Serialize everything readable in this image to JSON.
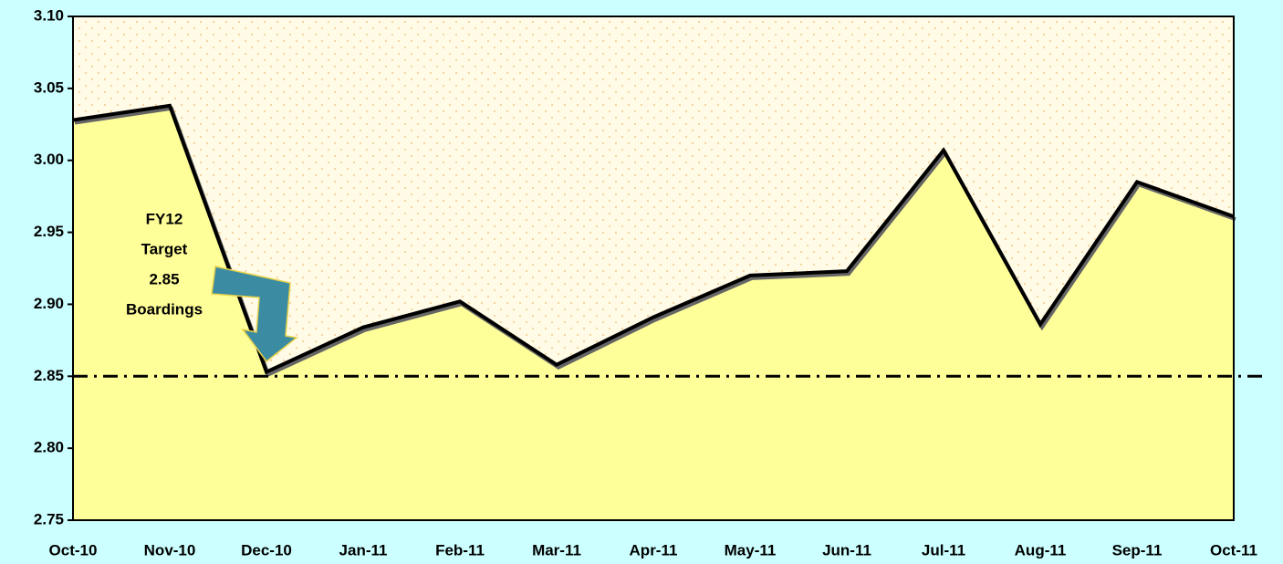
{
  "chart_data": {
    "type": "area",
    "categories": [
      "Oct-10",
      "Nov-10",
      "Dec-10",
      "Jan-11",
      "Feb-11",
      "Mar-11",
      "Apr-11",
      "May-11",
      "Jun-11",
      "Jul-11",
      "Aug-11",
      "Sep-11",
      "Oct-11"
    ],
    "series": [
      {
        "color": "#ffff99",
        "values": [
          3.028,
          3.038,
          2.853,
          2.884,
          2.902,
          2.858,
          2.891,
          2.92,
          2.923,
          3.007,
          2.886,
          2.985,
          2.961
        ]
      }
    ],
    "ylim": [
      2.75,
      3.1
    ],
    "yticks": [
      2.75,
      {
        "value": 2.8,
        "label": "2.80"
      },
      2.85,
      {
        "value": 2.9,
        "label": "2.90"
      },
      2.95,
      {
        "value": 3.0,
        "label": "3.00"
      },
      3.05,
      {
        "value": 3.1,
        "label": "3.10"
      }
    ],
    "target": 2.85,
    "annotation": [
      "FY12",
      "Target",
      "2.85",
      "Boardings"
    ]
  }
}
